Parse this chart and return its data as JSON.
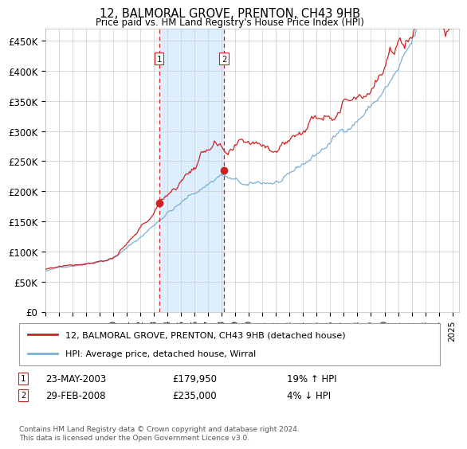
{
  "title": "12, BALMORAL GROVE, PRENTON, CH43 9HB",
  "subtitle": "Price paid vs. HM Land Registry's House Price Index (HPI)",
  "legend_line1": "12, BALMORAL GROVE, PRENTON, CH43 9HB (detached house)",
  "legend_line2": "HPI: Average price, detached house, Wirral",
  "sale1_date": "23-MAY-2003",
  "sale1_price": 179950,
  "sale1_hpi_text": "19% ↑ HPI",
  "sale1_year": 2003.38,
  "sale2_date": "29-FEB-2008",
  "sale2_price": 235000,
  "sale2_hpi_text": "4% ↓ HPI",
  "sale2_year": 2008.16,
  "hpi_color": "#7ab0d4",
  "price_color": "#cc2222",
  "shade_color": "#ddeeff",
  "footer": "Contains HM Land Registry data © Crown copyright and database right 2024.\nThis data is licensed under the Open Government Licence v3.0.",
  "ylim": [
    0,
    470000
  ],
  "xlim_start": 1995,
  "xlim_end": 2025.5,
  "yticks": [
    0,
    50000,
    100000,
    150000,
    200000,
    250000,
    300000,
    350000,
    400000,
    450000
  ],
  "ytick_labels": [
    "£0",
    "£50K",
    "£100K",
    "£150K",
    "£200K",
    "£250K",
    "£300K",
    "£350K",
    "£400K",
    "£450K"
  ],
  "xticks": [
    1995,
    1996,
    1997,
    1998,
    1999,
    2000,
    2001,
    2002,
    2003,
    2004,
    2005,
    2006,
    2007,
    2008,
    2009,
    2010,
    2011,
    2012,
    2013,
    2014,
    2015,
    2016,
    2017,
    2018,
    2019,
    2020,
    2021,
    2022,
    2023,
    2024,
    2025
  ]
}
